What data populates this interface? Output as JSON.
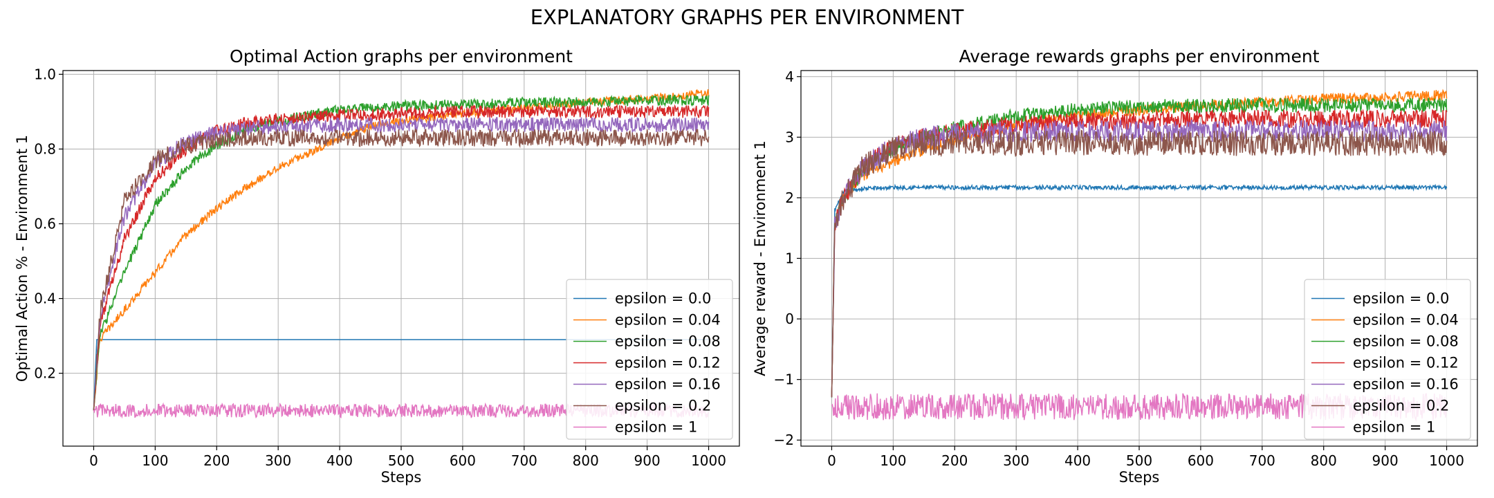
{
  "figure": {
    "suptitle": "EXPLANATORY GRAPHS PER ENVIRONMENT"
  },
  "chart_data": [
    {
      "type": "line",
      "title": "Optimal Action graphs per environment",
      "xlabel": "Steps",
      "ylabel": "Optimal Action % - Environment 1",
      "xlim": [
        -50,
        1050
      ],
      "ylim": [
        0.005,
        1.01
      ],
      "xticks": [
        0,
        100,
        200,
        300,
        400,
        500,
        600,
        700,
        800,
        900,
        1000
      ],
      "xtick_labels": [
        "0",
        "100",
        "200",
        "300",
        "400",
        "500",
        "600",
        "700",
        "800",
        "900",
        "1000"
      ],
      "yticks": [
        0.2,
        0.4,
        0.6,
        0.8,
        1.0
      ],
      "ytick_labels": [
        "0.2",
        "0.4",
        "0.6",
        "0.8",
        "1.0"
      ],
      "grid": true,
      "legend_position": "lower right",
      "series": [
        {
          "name": "epsilon = 0.0",
          "color": "#1f77b4",
          "x": [
            0,
            5,
            1000
          ],
          "y": [
            0.1,
            0.29,
            0.29
          ]
        },
        {
          "name": "epsilon = 0.04",
          "color": "#ff7f0e",
          "x": [
            0,
            10,
            50,
            100,
            150,
            200,
            250,
            300,
            350,
            400,
            450,
            500,
            600,
            700,
            800,
            900,
            1000
          ],
          "y": [
            0.1,
            0.29,
            0.37,
            0.47,
            0.57,
            0.64,
            0.7,
            0.75,
            0.79,
            0.83,
            0.86,
            0.875,
            0.895,
            0.91,
            0.925,
            0.935,
            0.95
          ]
        },
        {
          "name": "epsilon = 0.08",
          "color": "#2ca02c",
          "x": [
            0,
            10,
            50,
            100,
            150,
            200,
            250,
            300,
            350,
            400,
            500,
            600,
            700,
            800,
            900,
            1000
          ],
          "y": [
            0.1,
            0.3,
            0.47,
            0.65,
            0.75,
            0.81,
            0.855,
            0.875,
            0.89,
            0.905,
            0.915,
            0.92,
            0.925,
            0.925,
            0.93,
            0.93
          ]
        },
        {
          "name": "epsilon = 0.12",
          "color": "#d62728",
          "x": [
            0,
            10,
            50,
            100,
            150,
            200,
            250,
            300,
            400,
            500,
            600,
            700,
            800,
            900,
            1000
          ],
          "y": [
            0.1,
            0.33,
            0.56,
            0.72,
            0.8,
            0.85,
            0.87,
            0.88,
            0.89,
            0.895,
            0.9,
            0.9,
            0.9,
            0.9,
            0.9
          ]
        },
        {
          "name": "epsilon = 0.16",
          "color": "#9467bd",
          "x": [
            0,
            10,
            50,
            100,
            150,
            200,
            250,
            300,
            400,
            500,
            600,
            700,
            800,
            900,
            1000
          ],
          "y": [
            0.1,
            0.35,
            0.62,
            0.76,
            0.82,
            0.845,
            0.855,
            0.86,
            0.865,
            0.865,
            0.865,
            0.865,
            0.865,
            0.865,
            0.865
          ]
        },
        {
          "name": "epsilon = 0.2",
          "color": "#8c564b",
          "x": [
            0,
            10,
            50,
            100,
            150,
            200,
            250,
            300,
            400,
            500,
            600,
            700,
            800,
            900,
            1000
          ],
          "y": [
            0.1,
            0.36,
            0.66,
            0.77,
            0.81,
            0.825,
            0.83,
            0.83,
            0.83,
            0.83,
            0.83,
            0.83,
            0.83,
            0.83,
            0.83
          ]
        },
        {
          "name": "epsilon = 1",
          "color": "#e377c2",
          "x": [
            0,
            1000
          ],
          "y": [
            0.1,
            0.1
          ]
        }
      ]
    },
    {
      "type": "line",
      "title": "Average rewards graphs per environment",
      "xlabel": "Steps",
      "ylabel": "Average reward - Environment 1",
      "xlim": [
        -50,
        1050
      ],
      "ylim": [
        -2.1,
        4.1
      ],
      "xticks": [
        0,
        100,
        200,
        300,
        400,
        500,
        600,
        700,
        800,
        900,
        1000
      ],
      "xtick_labels": [
        "0",
        "100",
        "200",
        "300",
        "400",
        "500",
        "600",
        "700",
        "800",
        "900",
        "1000"
      ],
      "yticks": [
        -2,
        -1,
        0,
        1,
        2,
        3,
        4
      ],
      "ytick_labels": [
        "−2",
        "−1",
        "0",
        "1",
        "2",
        "3",
        "4"
      ],
      "grid": true,
      "legend_position": "lower right",
      "series": [
        {
          "name": "epsilon = 0.0",
          "color": "#1f77b4",
          "x": [
            0,
            5,
            20,
            50,
            100,
            1000
          ],
          "y": [
            -1.3,
            1.8,
            2.1,
            2.15,
            2.17,
            2.17
          ]
        },
        {
          "name": "epsilon = 0.04",
          "color": "#ff7f0e",
          "x": [
            0,
            5,
            20,
            50,
            100,
            150,
            200,
            300,
            400,
            500,
            600,
            700,
            800,
            900,
            1000
          ],
          "y": [
            -1.3,
            1.6,
            2.0,
            2.35,
            2.6,
            2.8,
            2.95,
            3.2,
            3.35,
            3.45,
            3.52,
            3.58,
            3.63,
            3.66,
            3.7
          ]
        },
        {
          "name": "epsilon = 0.08",
          "color": "#2ca02c",
          "x": [
            0,
            5,
            20,
            50,
            100,
            150,
            200,
            300,
            400,
            500,
            600,
            700,
            800,
            900,
            1000
          ],
          "y": [
            -1.3,
            1.6,
            2.0,
            2.45,
            2.8,
            3.0,
            3.15,
            3.35,
            3.45,
            3.5,
            3.52,
            3.53,
            3.53,
            3.53,
            3.53
          ]
        },
        {
          "name": "epsilon = 0.12",
          "color": "#d62728",
          "x": [
            0,
            5,
            20,
            50,
            100,
            150,
            200,
            300,
            400,
            500,
            600,
            700,
            800,
            900,
            1000
          ],
          "y": [
            -1.3,
            1.6,
            2.0,
            2.5,
            2.85,
            3.0,
            3.1,
            3.2,
            3.25,
            3.28,
            3.3,
            3.3,
            3.3,
            3.3,
            3.3
          ]
        },
        {
          "name": "epsilon = 0.16",
          "color": "#9467bd",
          "x": [
            0,
            5,
            20,
            50,
            100,
            150,
            200,
            300,
            400,
            500,
            600,
            700,
            800,
            900,
            1000
          ],
          "y": [
            -1.3,
            1.6,
            2.0,
            2.5,
            2.85,
            3.0,
            3.05,
            3.08,
            3.1,
            3.1,
            3.1,
            3.1,
            3.1,
            3.1,
            3.1
          ]
        },
        {
          "name": "epsilon = 0.2",
          "color": "#8c564b",
          "x": [
            0,
            5,
            20,
            50,
            100,
            150,
            200,
            300,
            400,
            500,
            600,
            700,
            800,
            900,
            1000
          ],
          "y": [
            -1.3,
            1.6,
            2.0,
            2.5,
            2.8,
            2.9,
            2.9,
            2.9,
            2.9,
            2.9,
            2.9,
            2.9,
            2.9,
            2.9,
            2.9
          ]
        },
        {
          "name": "epsilon = 1",
          "color": "#e377c2",
          "x": [
            0,
            1000
          ],
          "y": [
            -1.45,
            -1.45
          ]
        }
      ]
    }
  ]
}
